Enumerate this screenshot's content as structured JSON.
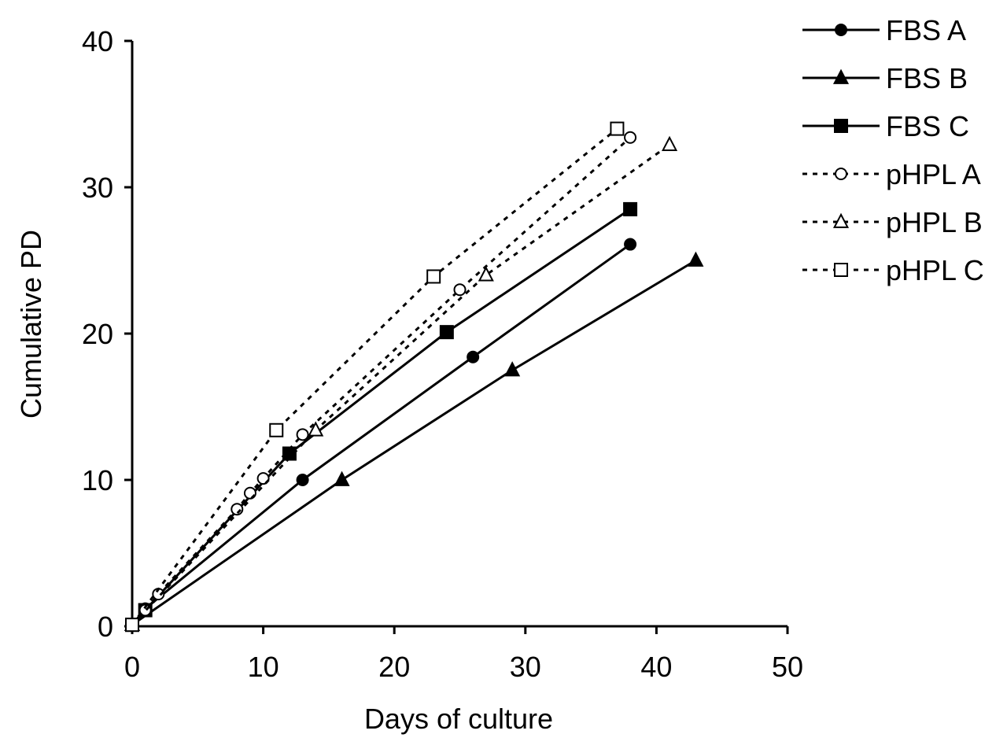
{
  "chart_data": {
    "type": "line",
    "xlabel": "Days of culture",
    "ylabel": "Cumulative PD",
    "xlim": [
      0,
      50
    ],
    "ylim": [
      0,
      40
    ],
    "xticks": [
      0,
      10,
      20,
      30,
      40,
      50
    ],
    "yticks": [
      0,
      10,
      20,
      30,
      40
    ],
    "grid": false,
    "legend_position": "top-right",
    "series": [
      {
        "name": "FBS A",
        "line": "solid",
        "marker": "circle",
        "filled": true,
        "x": [
          0,
          1,
          13,
          26,
          38
        ],
        "y": [
          0.1,
          1.2,
          10.0,
          18.4,
          26.1
        ]
      },
      {
        "name": "FBS B",
        "line": "solid",
        "marker": "triangle",
        "filled": true,
        "x": [
          0,
          16,
          29,
          43
        ],
        "y": [
          0.1,
          10.0,
          17.5,
          25.0
        ]
      },
      {
        "name": "FBS C",
        "line": "solid",
        "marker": "square",
        "filled": true,
        "x": [
          0,
          1,
          12,
          24,
          38
        ],
        "y": [
          0.1,
          1.1,
          11.8,
          20.1,
          28.5
        ]
      },
      {
        "name": "pHPL A",
        "line": "dashed",
        "marker": "circle",
        "filled": false,
        "x": [
          0,
          1,
          2,
          8,
          9,
          10,
          13,
          25,
          38
        ],
        "y": [
          0.1,
          1.1,
          2.2,
          8.0,
          9.1,
          10.1,
          13.1,
          23.0,
          33.4
        ]
      },
      {
        "name": "pHPL B",
        "line": "dashed",
        "marker": "triangle",
        "filled": false,
        "x": [
          0,
          14,
          27,
          41
        ],
        "y": [
          0.1,
          13.4,
          24.0,
          32.9
        ]
      },
      {
        "name": "pHPL C",
        "line": "dashed",
        "marker": "square",
        "filled": false,
        "x": [
          0,
          11,
          23,
          37
        ],
        "y": [
          0.1,
          13.4,
          23.9,
          34.0
        ]
      }
    ]
  }
}
